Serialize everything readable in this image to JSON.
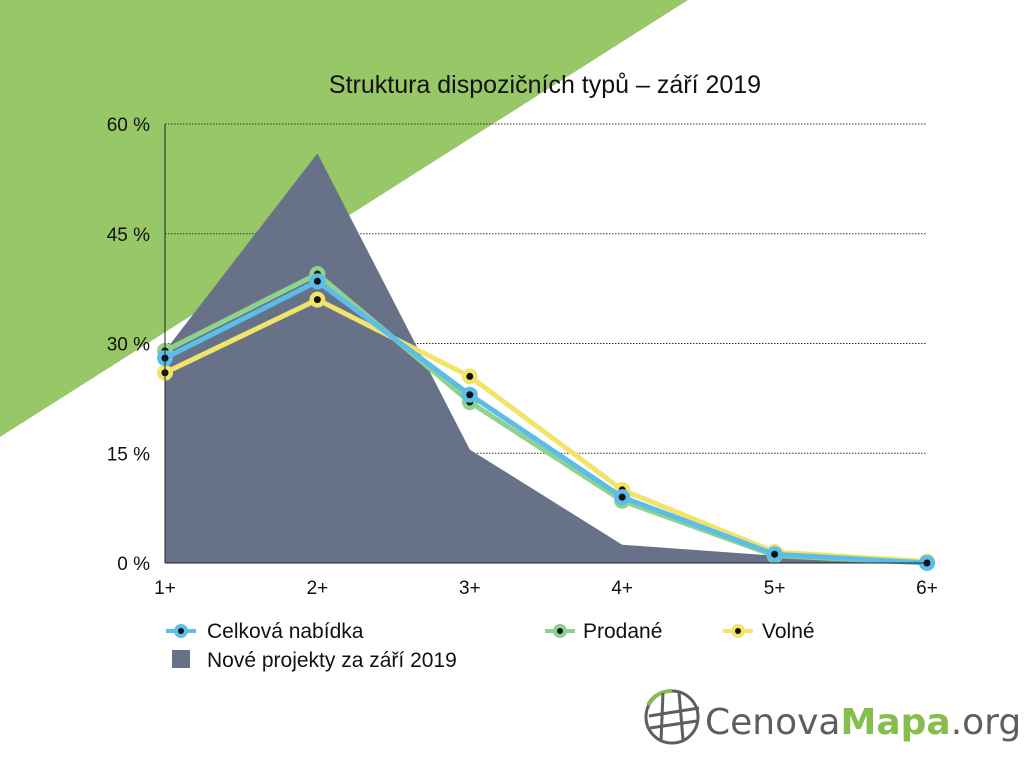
{
  "chart_data": {
    "type": "line",
    "title": "Struktura dispozičních typů – září 2019",
    "categories": [
      "1+",
      "2+",
      "3+",
      "4+",
      "5+",
      "6+"
    ],
    "y_ticks": [
      "0 %",
      "15 %",
      "30 %",
      "45 %",
      "60 %"
    ],
    "ylim": [
      0,
      60
    ],
    "grid": true,
    "legend_position": "bottom",
    "series": [
      {
        "name": "Celková nabídka",
        "kind": "line",
        "color": "#5bbde8",
        "values": [
          28,
          38.5,
          23,
          9,
          1.2,
          0
        ]
      },
      {
        "name": "Prodané",
        "kind": "line",
        "color": "#8fd18e",
        "values": [
          29,
          39.5,
          22,
          8.5,
          1,
          0
        ]
      },
      {
        "name": "Volné",
        "kind": "line",
        "color": "#f2e46a",
        "values": [
          26,
          36,
          25.5,
          10,
          1.5,
          0.2
        ]
      },
      {
        "name": "Nové projekty za září 2019",
        "kind": "area",
        "color": "#677289",
        "values": [
          29,
          56,
          15.5,
          2.5,
          1,
          0
        ]
      }
    ]
  },
  "brand": {
    "part1": "Cenova",
    "part2": "Mapa",
    "part3": ".org",
    "green": "#87bd4d",
    "gray": "#5e5e5e"
  },
  "background": {
    "accent_color": "#98c767"
  }
}
